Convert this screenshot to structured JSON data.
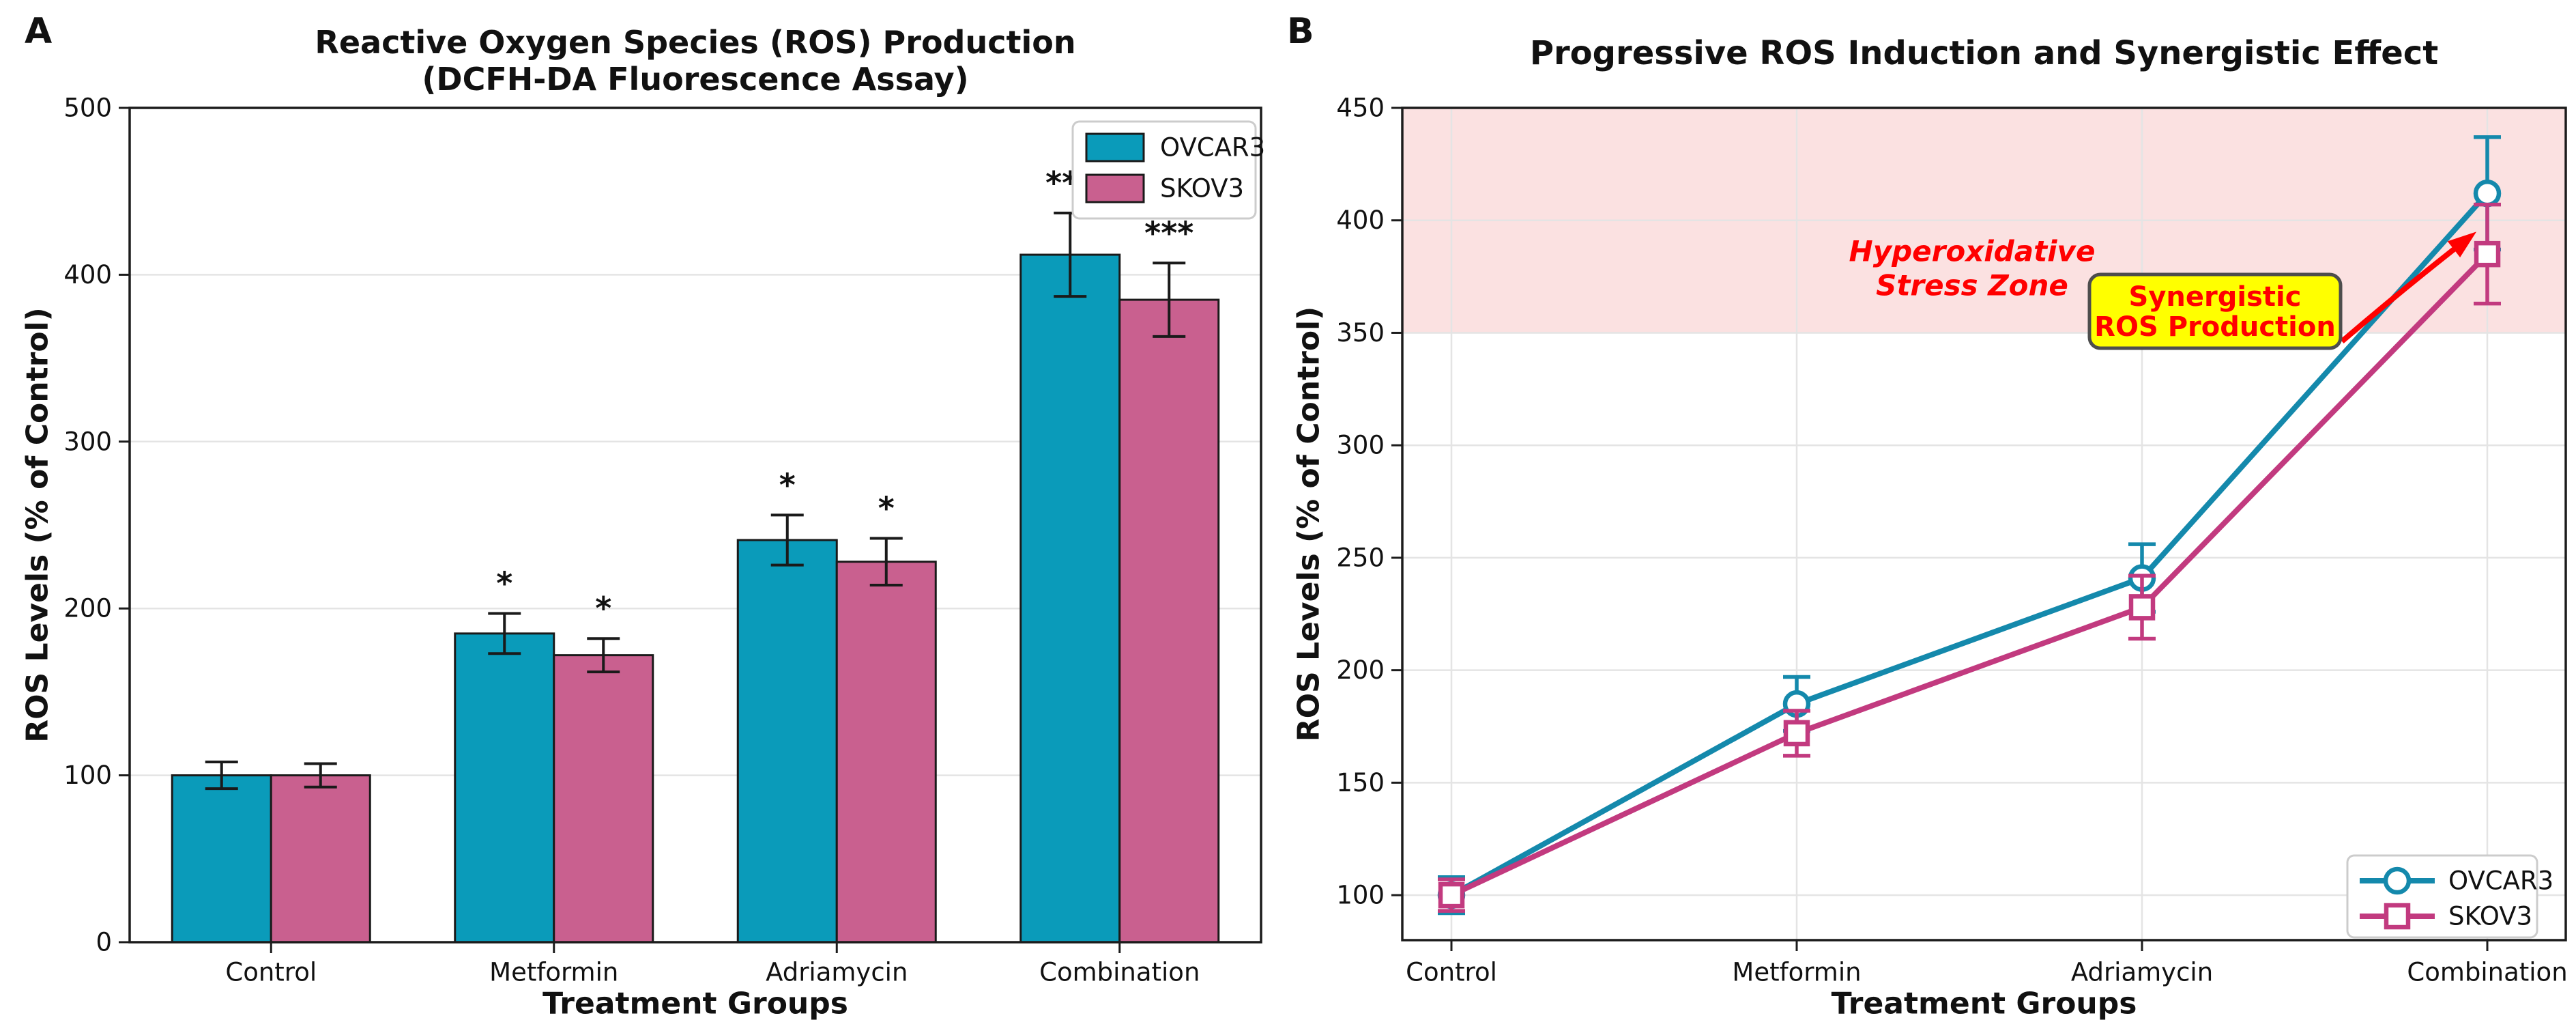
{
  "figure": {
    "panel_a_label": "A",
    "panel_b_label": "B"
  },
  "colors": {
    "ovcar3_bar": "#0A9BBA",
    "ovcar3_line": "#1489AC",
    "skov3_bar": "#C9608F",
    "skov3_line": "#C23A7F",
    "bar_edge": "#1A1A1A",
    "error_bar": "#1A1A1A",
    "spine": "#1C1C1C",
    "grid": "#E4E4E4",
    "text": "#111111",
    "zone_fill": "#FBE1E1",
    "annotation_red": "#FF0000",
    "yellow_box_fill": "#FFFF00",
    "yellow_box_border": "#4D4D4D",
    "legend_border": "#CCCCCC",
    "legend_bg": "#FFFFFF"
  },
  "chart_data": [
    {
      "panel": "A",
      "type": "bar",
      "title_lines": [
        "Reactive Oxygen Species (ROS) Production",
        "(DCFH-DA Fluorescence Assay)"
      ],
      "xlabel": "Treatment Groups",
      "ylabel": "ROS Levels (% of Control)",
      "categories": [
        "Control",
        "Metformin",
        "Adriamycin",
        "Combination"
      ],
      "series": [
        {
          "name": "OVCAR3",
          "color_key": "ovcar3_bar",
          "values": [
            100,
            185,
            241,
            412
          ],
          "errors": [
            8,
            12,
            15,
            25
          ],
          "significance": [
            "",
            "*",
            "*",
            "***"
          ]
        },
        {
          "name": "SKOV3",
          "color_key": "skov3_bar",
          "values": [
            100,
            172,
            228,
            385
          ],
          "errors": [
            7,
            10,
            14,
            22
          ],
          "significance": [
            "",
            "*",
            "*",
            "***"
          ]
        }
      ],
      "ylim": [
        0,
        500
      ],
      "yticks": [
        0,
        100,
        200,
        300,
        400,
        500
      ],
      "grid": "horizontal",
      "legend_position": "upper right"
    },
    {
      "panel": "B",
      "type": "line",
      "title": "Progressive ROS Induction and Synergistic Effect",
      "xlabel": "Treatment Groups",
      "ylabel": "ROS Levels (% of Control)",
      "categories": [
        "Control",
        "Metformin",
        "Adriamycin",
        "Combination"
      ],
      "series": [
        {
          "name": "OVCAR3",
          "color_key": "ovcar3_line",
          "marker": "circle",
          "values": [
            100,
            185,
            241,
            412
          ],
          "errors": [
            8,
            12,
            15,
            25
          ]
        },
        {
          "name": "SKOV3",
          "color_key": "skov3_line",
          "marker": "square",
          "values": [
            100,
            172,
            228,
            385
          ],
          "errors": [
            7,
            10,
            14,
            22
          ]
        }
      ],
      "ylim": [
        80,
        450
      ],
      "yticks": [
        100,
        150,
        200,
        250,
        300,
        350,
        400,
        450
      ],
      "grid": "both",
      "legend_position": "lower right",
      "shaded_zone": {
        "ymin": 350,
        "ymax": 450,
        "label_lines": [
          "Hyperoxidative",
          "Stress Zone"
        ]
      },
      "annotation_box": {
        "label_lines": [
          "Synergistic",
          "ROS Production"
        ]
      }
    }
  ]
}
